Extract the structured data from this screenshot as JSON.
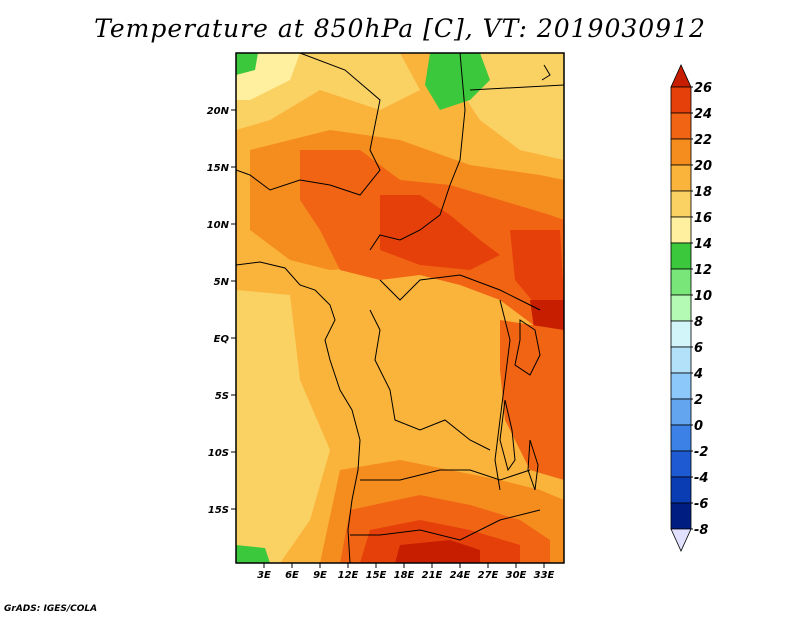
{
  "title": "Temperature at 850hPa [C], VT: 2019030912",
  "credit": "GrADS: IGES/COLA",
  "map": {
    "lon_labels": [
      "3E",
      "6E",
      "9E",
      "12E",
      "15E",
      "18E",
      "21E",
      "24E",
      "27E",
      "30E",
      "33E"
    ],
    "lat_labels": [
      "20N",
      "15N",
      "10N",
      "5N",
      "EQ",
      "5S",
      "10S",
      "15S"
    ]
  },
  "colorbar": {
    "labels": [
      "26",
      "24",
      "22",
      "20",
      "18",
      "16",
      "14",
      "12",
      "10",
      "8",
      "6",
      "4",
      "2",
      "0",
      "-2",
      "-4",
      "-6",
      "-8"
    ],
    "colors": [
      "#c81e00",
      "#e6400a",
      "#f06414",
      "#f58c1e",
      "#fab43c",
      "#fad264",
      "#fff0a0",
      "#3cc83c",
      "#78e678",
      "#b4fab4",
      "#d2f5fa",
      "#b4e1fa",
      "#8cc8fa",
      "#64a5f0",
      "#3c82e6",
      "#1e5ad2",
      "#0a3cb4",
      "#001e82",
      "#000050",
      "#e1e1ff"
    ]
  }
}
